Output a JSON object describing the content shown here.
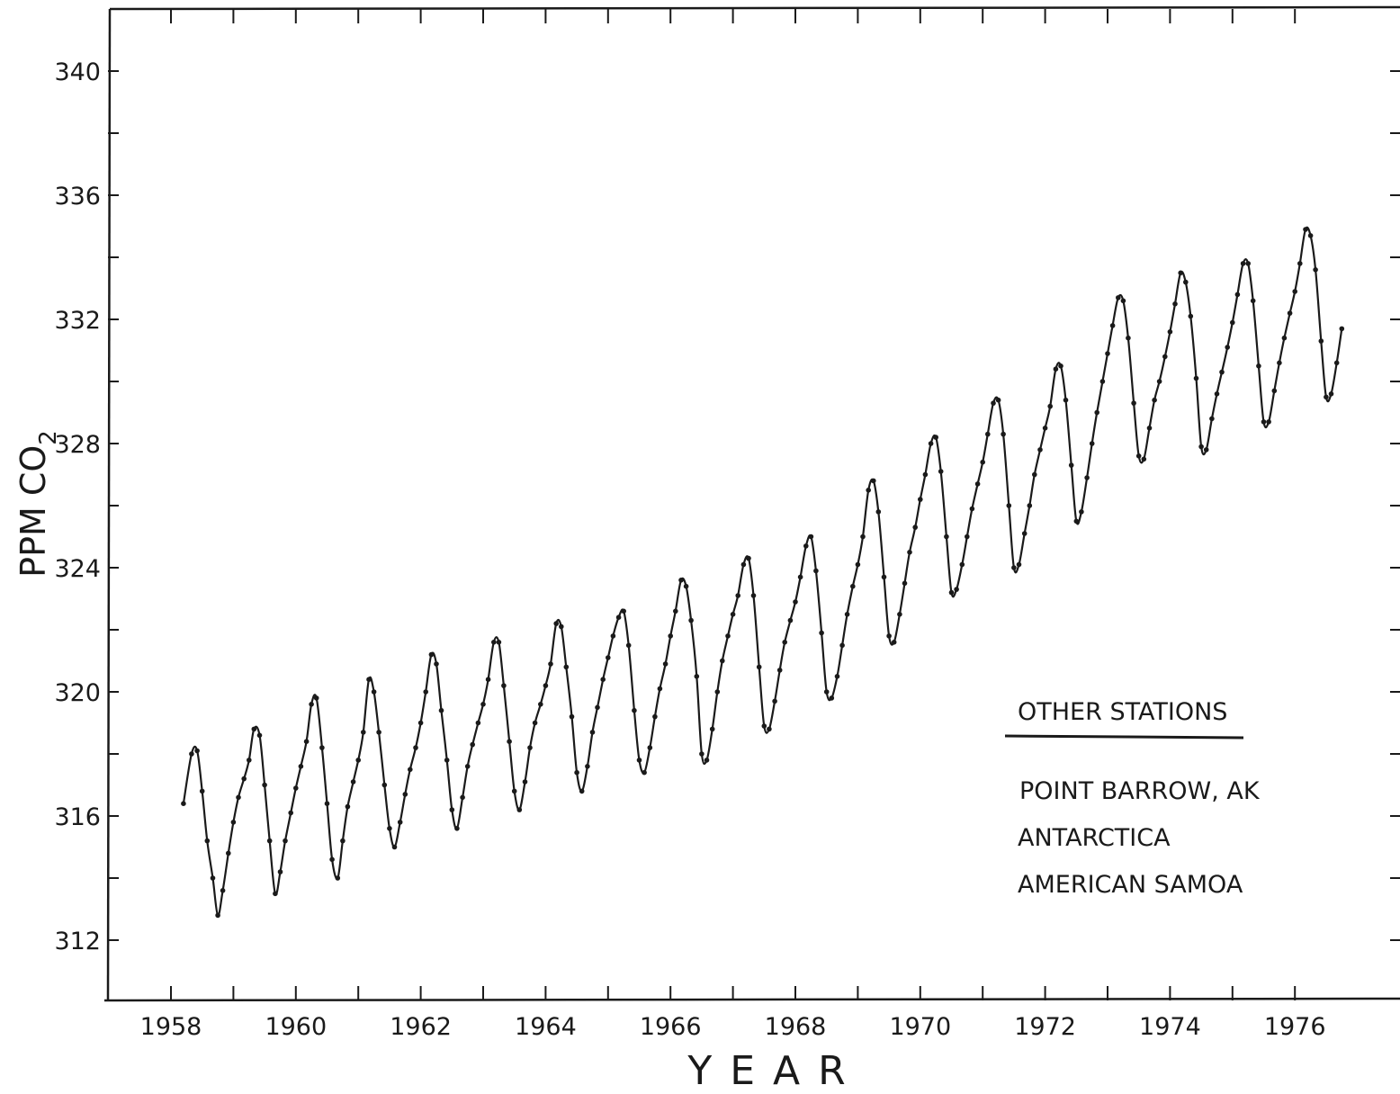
{
  "chart_data": {
    "type": "line",
    "xlabel": "YEAR",
    "ylabel": "PPM CO",
    "ylabel_subscript": "2",
    "xlim": [
      1957.5,
      1977
    ],
    "ylim": [
      310,
      342
    ],
    "x_ticks": [
      1958,
      1960,
      1962,
      1964,
      1966,
      1968,
      1970,
      1972,
      1974,
      1976
    ],
    "x_tick_labels": [
      "1958",
      "1960",
      "1962",
      "1964",
      "1966",
      "1968",
      "1970",
      "1972",
      "1974",
      "1976"
    ],
    "y_ticks": [
      312,
      316,
      320,
      324,
      328,
      332,
      336,
      340
    ],
    "y_tick_labels": [
      "312",
      "316",
      "320",
      "324",
      "328",
      "332",
      "336",
      "340"
    ],
    "grid": false,
    "legend": {
      "title": "OTHER STATIONS",
      "placement": "lower-right",
      "items": [
        "POINT BARROW, AK",
        "ANTARCTICA",
        "AMERICAN SAMOA"
      ]
    },
    "series": [
      {
        "style": "line-with-markers",
        "color": "#1a1a1a",
        "x": [
          1958.2,
          1958.33,
          1958.42,
          1958.5,
          1958.58,
          1958.67,
          1958.75,
          1958.83,
          1958.92,
          1959.0,
          1959.08,
          1959.17,
          1959.25,
          1959.33,
          1959.42,
          1959.5,
          1959.58,
          1959.67,
          1959.75,
          1959.83,
          1959.92,
          1960.0,
          1960.08,
          1960.17,
          1960.25,
          1960.33,
          1960.42,
          1960.5,
          1960.58,
          1960.67,
          1960.75,
          1960.83,
          1960.92,
          1961.0,
          1961.08,
          1961.17,
          1961.25,
          1961.33,
          1961.42,
          1961.5,
          1961.58,
          1961.67,
          1961.75,
          1961.83,
          1961.92,
          1962.0,
          1962.08,
          1962.17,
          1962.25,
          1962.33,
          1962.42,
          1962.5,
          1962.58,
          1962.67,
          1962.75,
          1962.83,
          1962.92,
          1963.0,
          1963.08,
          1963.17,
          1963.25,
          1963.33,
          1963.42,
          1963.5,
          1963.58,
          1963.67,
          1963.75,
          1963.83,
          1963.92,
          1964.0,
          1964.08,
          1964.17,
          1964.25,
          1964.33,
          1964.42,
          1964.5,
          1964.58,
          1964.67,
          1964.75,
          1964.83,
          1964.92,
          1965.0,
          1965.08,
          1965.17,
          1965.25,
          1965.33,
          1965.42,
          1965.5,
          1965.58,
          1965.67,
          1965.75,
          1965.83,
          1965.92,
          1966.0,
          1966.08,
          1966.17,
          1966.25,
          1966.33,
          1966.42,
          1966.5,
          1966.58,
          1966.67,
          1966.75,
          1966.83,
          1966.92,
          1967.0,
          1967.08,
          1967.17,
          1967.25,
          1967.33,
          1967.42,
          1967.5,
          1967.58,
          1967.67,
          1967.75,
          1967.83,
          1967.92,
          1968.0,
          1968.08,
          1968.17,
          1968.25,
          1968.33,
          1968.42,
          1968.5,
          1968.58,
          1968.67,
          1968.75,
          1968.83,
          1968.92,
          1969.0,
          1969.08,
          1969.17,
          1969.25,
          1969.33,
          1969.42,
          1969.5,
          1969.58,
          1969.67,
          1969.75,
          1969.83,
          1969.92,
          1970.0,
          1970.08,
          1970.17,
          1970.25,
          1970.33,
          1970.42,
          1970.5,
          1970.58,
          1970.67,
          1970.75,
          1970.83,
          1970.92,
          1971.0,
          1971.08,
          1971.17,
          1971.25,
          1971.33,
          1971.42,
          1971.5,
          1971.58,
          1971.67,
          1971.75,
          1971.83,
          1971.92,
          1972.0,
          1972.08,
          1972.17,
          1972.25,
          1972.33,
          1972.42,
          1972.5,
          1972.58,
          1972.67,
          1972.75,
          1972.83,
          1972.92,
          1973.0,
          1973.08,
          1973.17,
          1973.25,
          1973.33,
          1973.42,
          1973.5,
          1973.58,
          1973.67,
          1973.75,
          1973.83,
          1973.92,
          1974.0,
          1974.08,
          1974.17,
          1974.25,
          1974.33,
          1974.42,
          1974.5,
          1974.58,
          1974.67,
          1974.75,
          1974.83,
          1974.92,
          1975.0,
          1975.08,
          1975.17,
          1975.25,
          1975.33,
          1975.42,
          1975.5,
          1975.58,
          1975.67,
          1975.75,
          1975.83,
          1975.92,
          1976.0,
          1976.08,
          1976.17,
          1976.25,
          1976.33,
          1976.42,
          1976.5,
          1976.58,
          1976.67,
          1976.75
        ],
        "values": [
          316.4,
          318.0,
          318.1,
          316.8,
          315.2,
          314.0,
          312.8,
          313.6,
          314.8,
          315.8,
          316.6,
          317.2,
          317.8,
          318.8,
          318.6,
          317.0,
          315.2,
          313.5,
          314.2,
          315.2,
          316.1,
          316.9,
          317.6,
          318.4,
          319.6,
          319.8,
          318.2,
          316.4,
          314.6,
          314.0,
          315.2,
          316.3,
          317.1,
          317.8,
          318.7,
          320.4,
          320.0,
          318.7,
          317.0,
          315.6,
          315.0,
          315.8,
          316.7,
          317.5,
          318.2,
          319.0,
          320.0,
          321.2,
          320.9,
          319.4,
          317.8,
          316.2,
          315.6,
          316.6,
          317.6,
          318.3,
          319.0,
          319.6,
          320.4,
          321.6,
          321.6,
          320.2,
          318.4,
          316.8,
          316.2,
          317.1,
          318.2,
          319.0,
          319.6,
          320.2,
          320.9,
          322.2,
          322.1,
          320.8,
          319.2,
          317.4,
          316.8,
          317.6,
          318.7,
          319.5,
          320.4,
          321.1,
          321.8,
          322.4,
          322.6,
          321.5,
          319.4,
          317.8,
          317.4,
          318.2,
          319.2,
          320.1,
          320.9,
          321.8,
          322.6,
          323.6,
          323.4,
          322.3,
          320.5,
          318.0,
          317.8,
          318.8,
          320.0,
          321.0,
          321.8,
          322.5,
          323.1,
          324.1,
          324.3,
          323.1,
          320.8,
          318.9,
          318.8,
          319.7,
          320.7,
          321.6,
          322.3,
          322.9,
          323.7,
          324.7,
          325.0,
          323.9,
          321.9,
          320.0,
          319.8,
          320.5,
          321.5,
          322.5,
          323.4,
          324.1,
          325.0,
          326.5,
          326.8,
          325.8,
          323.7,
          321.8,
          321.6,
          322.5,
          323.5,
          324.5,
          325.3,
          326.2,
          327.0,
          328.0,
          328.2,
          327.1,
          325.0,
          323.2,
          323.3,
          324.1,
          325.0,
          325.9,
          326.7,
          327.4,
          328.3,
          329.3,
          329.4,
          328.3,
          326.0,
          324.0,
          324.1,
          325.1,
          326.0,
          327.0,
          327.8,
          328.5,
          329.2,
          330.4,
          330.5,
          329.4,
          327.3,
          325.5,
          325.8,
          326.9,
          328.0,
          329.0,
          330.0,
          330.9,
          331.8,
          332.7,
          332.6,
          331.4,
          329.3,
          327.6,
          327.5,
          328.5,
          329.4,
          330.0,
          330.8,
          331.6,
          332.5,
          333.5,
          333.2,
          332.1,
          330.1,
          327.9,
          327.8,
          328.8,
          329.6,
          330.3,
          331.1,
          331.9,
          332.8,
          333.8,
          333.8,
          332.6,
          330.5,
          328.7,
          328.7,
          329.7,
          330.6,
          331.4,
          332.2,
          332.9,
          333.8,
          334.9,
          334.7,
          333.6,
          331.3,
          329.5,
          329.6,
          330.6,
          331.7
        ]
      }
    ]
  }
}
